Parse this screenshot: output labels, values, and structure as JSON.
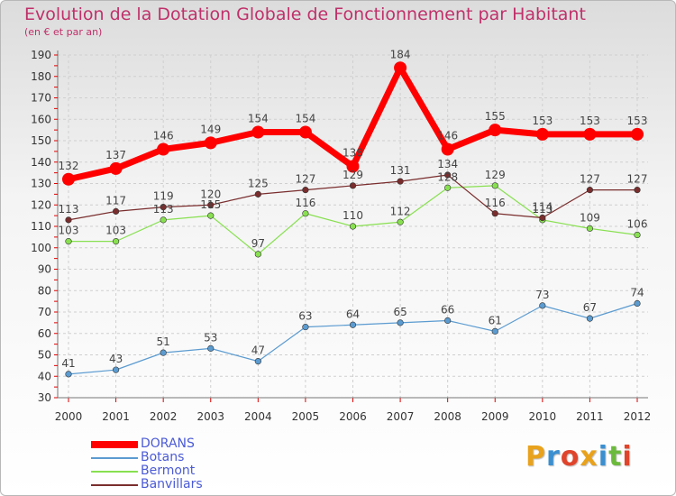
{
  "title": "Evolution de la Dotation Globale de Fonctionnement par Habitant",
  "subtitle": "(en € et par an)",
  "logo": {
    "text": "Proxiti",
    "colors": [
      "#e8a21c",
      "#3a8fd0",
      "#e0452c",
      "#e8a21c",
      "#3a8fd0",
      "#6cba3c",
      "#e0452c"
    ]
  },
  "chart_data": {
    "type": "line",
    "title": "Evolution de la Dotation Globale de Fonctionnement par Habitant",
    "subtitle": "(en € et par an)",
    "x": [
      "2000",
      "2001",
      "2002",
      "2003",
      "2004",
      "2005",
      "2006",
      "2007",
      "2008",
      "2009",
      "2010",
      "2011",
      "2012"
    ],
    "ylim": [
      30,
      190
    ],
    "yticks": [
      30,
      40,
      50,
      60,
      70,
      80,
      90,
      100,
      110,
      120,
      130,
      140,
      150,
      160,
      170,
      180,
      190
    ],
    "grid": true,
    "legend_position": "bottom-left",
    "series": [
      {
        "name": "DORANS",
        "color": "#ff0000",
        "values": [
          132,
          137,
          146,
          149,
          154,
          154,
          138,
          184,
          146,
          155,
          153,
          153,
          153
        ]
      },
      {
        "name": "Botans",
        "color": "#5b9bd0",
        "values": [
          41,
          43,
          51,
          53,
          47,
          63,
          64,
          65,
          66,
          61,
          73,
          67,
          74
        ]
      },
      {
        "name": "Bermont",
        "color": "#88e050",
        "values": [
          103,
          103,
          113,
          115,
          97,
          116,
          110,
          112,
          128,
          129,
          113,
          109,
          106
        ]
      },
      {
        "name": "Banvillars",
        "color": "#7a2d2d",
        "values": [
          113,
          117,
          119,
          120,
          125,
          127,
          129,
          131,
          134,
          116,
          114,
          127,
          127
        ]
      }
    ]
  }
}
